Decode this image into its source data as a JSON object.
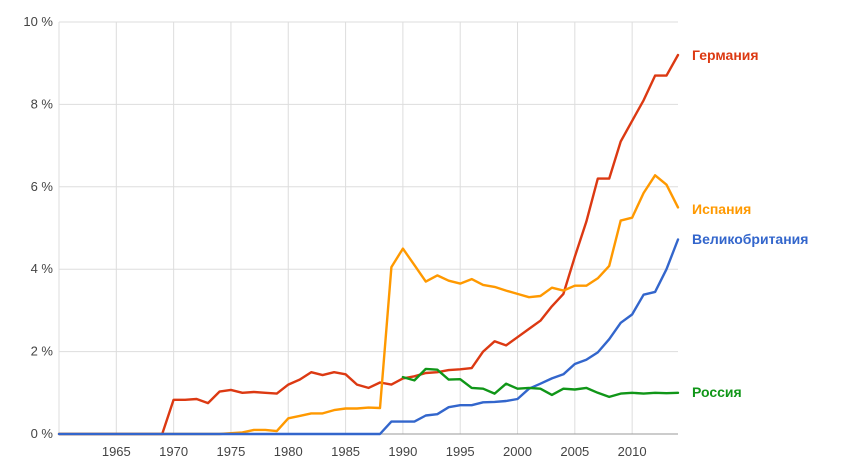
{
  "chart_data": {
    "type": "line",
    "title": "",
    "xlabel": "",
    "ylabel": "",
    "xlim": [
      1960,
      2014
    ],
    "ylim": [
      0,
      10
    ],
    "grid": true,
    "legend": "inline-right",
    "x_ticks": [
      1965,
      1970,
      1975,
      1980,
      1985,
      1990,
      1995,
      2000,
      2005,
      2010
    ],
    "x_tick_labels": [
      "1965",
      "1970",
      "1975",
      "1980",
      "1985",
      "1990",
      "1995",
      "2000",
      "2005",
      "2010"
    ],
    "y_ticks": [
      0,
      2,
      4,
      6,
      8,
      10
    ],
    "y_tick_labels": [
      "0 %",
      "2 %",
      "4 %",
      "6 %",
      "8 %",
      "10 %"
    ],
    "x": [
      1960,
      1961,
      1962,
      1963,
      1964,
      1965,
      1966,
      1967,
      1968,
      1969,
      1970,
      1971,
      1972,
      1973,
      1974,
      1975,
      1976,
      1977,
      1978,
      1979,
      1980,
      1981,
      1982,
      1983,
      1984,
      1985,
      1986,
      1987,
      1988,
      1989,
      1990,
      1991,
      1992,
      1993,
      1994,
      1995,
      1996,
      1997,
      1998,
      1999,
      2000,
      2001,
      2002,
      2003,
      2004,
      2005,
      2006,
      2007,
      2008,
      2009,
      2010,
      2011,
      2012,
      2013,
      2014
    ],
    "series": [
      {
        "name": "Германия",
        "color": "#dc3912",
        "values": [
          0,
          0,
          0,
          0,
          0,
          0,
          0,
          0,
          0,
          0,
          0.83,
          0.83,
          0.85,
          0.75,
          1.03,
          1.07,
          1.0,
          1.02,
          1.0,
          0.98,
          1.2,
          1.32,
          1.5,
          1.43,
          1.5,
          1.45,
          1.2,
          1.12,
          1.25,
          1.2,
          1.35,
          1.4,
          1.48,
          1.5,
          1.55,
          1.57,
          1.6,
          2.0,
          2.25,
          2.15,
          2.35,
          2.55,
          2.75,
          3.1,
          3.4,
          4.3,
          5.15,
          6.2,
          6.2,
          7.1,
          7.6,
          8.1,
          8.7,
          8.7,
          9.2
        ]
      },
      {
        "name": "Испания",
        "color": "#ff9900",
        "values": [
          0,
          0,
          0,
          0,
          0,
          0,
          0,
          0,
          0,
          0,
          0,
          0,
          0,
          0,
          0,
          0.02,
          0.04,
          0.1,
          0.1,
          0.07,
          0.38,
          0.44,
          0.5,
          0.5,
          0.58,
          0.62,
          0.62,
          0.64,
          0.63,
          4.05,
          4.5,
          4.1,
          3.7,
          3.85,
          3.72,
          3.65,
          3.76,
          3.62,
          3.57,
          3.48,
          3.4,
          3.32,
          3.35,
          3.55,
          3.48,
          3.6,
          3.6,
          3.78,
          4.08,
          5.18,
          5.25,
          5.85,
          6.28,
          6.05,
          5.5
        ]
      },
      {
        "name": "Великобритания",
        "color": "#3366cc",
        "values": [
          0,
          0,
          0,
          0,
          0,
          0,
          0,
          0,
          0,
          0,
          0,
          0,
          0,
          0,
          0,
          0,
          0,
          0,
          0,
          0,
          0,
          0,
          0,
          0,
          0,
          0,
          0,
          0,
          0,
          0.3,
          0.3,
          0.3,
          0.45,
          0.48,
          0.65,
          0.7,
          0.7,
          0.77,
          0.78,
          0.8,
          0.85,
          1.1,
          1.22,
          1.35,
          1.45,
          1.7,
          1.8,
          1.98,
          2.3,
          2.7,
          2.9,
          3.38,
          3.45,
          4.0,
          4.72
        ]
      },
      {
        "name": "Россия",
        "color": "#109618",
        "values": [
          null,
          null,
          null,
          null,
          null,
          null,
          null,
          null,
          null,
          null,
          null,
          null,
          null,
          null,
          null,
          null,
          null,
          null,
          null,
          null,
          null,
          null,
          null,
          null,
          null,
          null,
          null,
          null,
          null,
          null,
          1.38,
          1.3,
          1.58,
          1.56,
          1.32,
          1.33,
          1.12,
          1.1,
          0.98,
          1.22,
          1.1,
          1.12,
          1.1,
          0.95,
          1.1,
          1.08,
          1.12,
          1.0,
          0.9,
          0.98,
          1.0,
          0.98,
          1.0,
          0.99,
          1.0
        ]
      }
    ]
  }
}
